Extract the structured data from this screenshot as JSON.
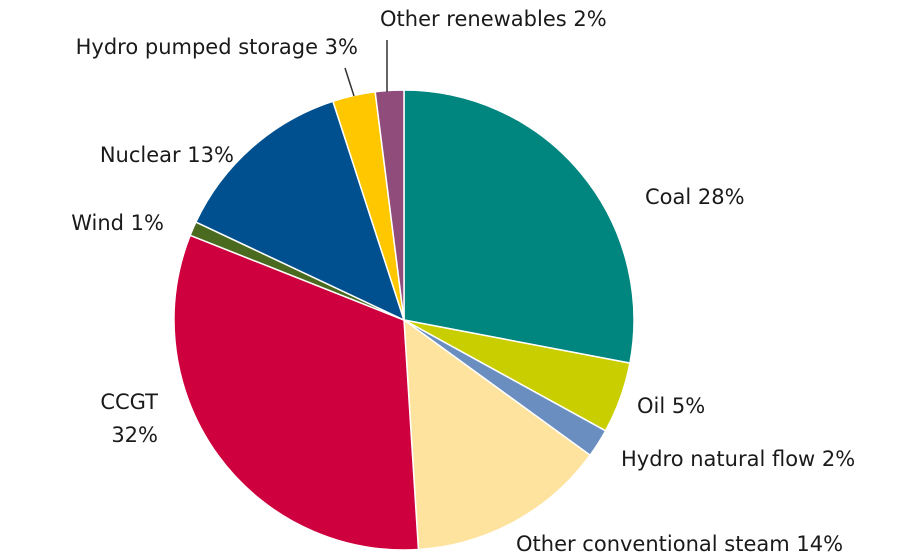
{
  "chart_data": {
    "type": "pie",
    "title": "",
    "slices": [
      {
        "name": "Coal",
        "value": 28,
        "label": "Coal 28%",
        "color": "#00857F"
      },
      {
        "name": "Oil",
        "value": 5,
        "label": "Oil 5%",
        "color": "#C9CE00"
      },
      {
        "name": "Hydro natural flow",
        "value": 2,
        "label": "Hydro natural flow 2%",
        "color": "#6A8EC0"
      },
      {
        "name": "Other conventional steam",
        "value": 14,
        "label": "Other conventional steam 14%",
        "color": "#FDE39E"
      },
      {
        "name": "CCGT",
        "value": 32,
        "label_lines": [
          "CCGT",
          "32%"
        ],
        "color": "#CE003D"
      },
      {
        "name": "Wind",
        "value": 1,
        "label": "Wind 1%",
        "color": "#4A6B1F"
      },
      {
        "name": "Nuclear",
        "value": 13,
        "label": "Nuclear 13%",
        "color": "#00508F"
      },
      {
        "name": "Hydro pumped storage",
        "value": 3,
        "label": "Hydro pumped storage 3%",
        "color": "#FFC700"
      },
      {
        "name": "Other renewables",
        "value": 2,
        "label": "Other renewables 2%",
        "color": "#904C7A"
      }
    ]
  }
}
